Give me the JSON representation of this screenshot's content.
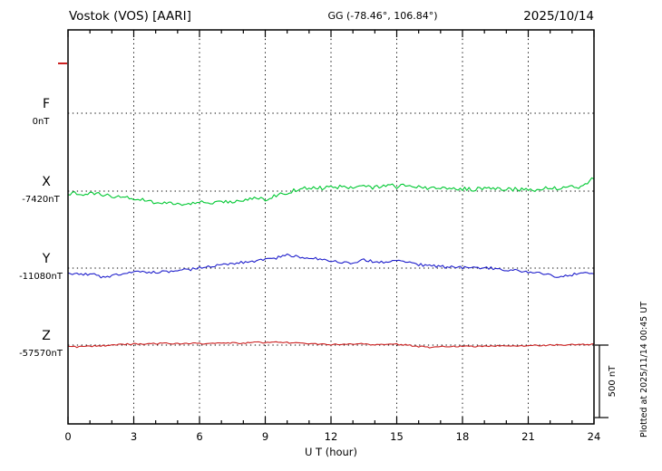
{
  "header": {
    "station": "Vostok (VOS)  [AARI]",
    "coords": "GG (-78.46°, 106.84°)",
    "date": "2025/10/14"
  },
  "xaxis": {
    "label": "U T (hour)",
    "tick_labels": [
      "0",
      "3",
      "6",
      "9",
      "12",
      "15",
      "18",
      "21",
      "24"
    ]
  },
  "scale_bar": {
    "label": "500 nT",
    "nt": 500
  },
  "plotted_at": "Plotted at 2025/11/14 00:45 UT",
  "chart_data": {
    "type": "line",
    "title": "Vostok (VOS) [AARI] magnetogram, 2025/10/14",
    "xlabel": "U T (hour)",
    "x_range_hours": [
      0,
      24
    ],
    "x_step_hours": 0.5,
    "x_ticks": [
      0,
      3,
      6,
      9,
      12,
      15,
      18,
      21,
      24
    ],
    "scale_nt": 500,
    "series": [
      {
        "name": "F",
        "color": "#ffa500",
        "baseline_label": "0nT",
        "baseline_nt": 0,
        "noise_nt": 0,
        "offsets_nt": []
      },
      {
        "name": "X",
        "color": "#00c832",
        "baseline_label": "-7420nT",
        "baseline_nt": -7420,
        "noise_nt": 14,
        "offsets_nt": [
          -15,
          -20,
          -18,
          -25,
          -35,
          -45,
          -55,
          -65,
          -75,
          -85,
          -90,
          -85,
          -72,
          -78,
          -80,
          -70,
          -60,
          -48,
          -55,
          -30,
          -8,
          12,
          25,
          20,
          26,
          32,
          25,
          32,
          26,
          45,
          30,
          40,
          26,
          20,
          16,
          22,
          16,
          12,
          16,
          12,
          16,
          12,
          8,
          12,
          22,
          16,
          35,
          30,
          90
        ]
      },
      {
        "name": "Y",
        "color": "#2020cc",
        "baseline_label": "-11080nT",
        "baseline_nt": -11080,
        "noise_nt": 10,
        "offsets_nt": [
          -30,
          -45,
          -40,
          -60,
          -55,
          -35,
          -20,
          -25,
          -30,
          -25,
          -20,
          -10,
          0,
          15,
          25,
          35,
          40,
          50,
          55,
          70,
          90,
          80,
          70,
          60,
          45,
          40,
          35,
          55,
          45,
          40,
          55,
          45,
          25,
          15,
          10,
          5,
          5,
          0,
          5,
          -5,
          -10,
          -15,
          -25,
          -35,
          -50,
          -60,
          -45,
          -40,
          -35
        ]
      },
      {
        "name": "Z",
        "color": "#cc2020",
        "baseline_label": "-57570nT",
        "baseline_nt": -57570,
        "noise_nt": 5,
        "offsets_nt": [
          -10,
          -12,
          -8,
          -5,
          0,
          5,
          8,
          5,
          10,
          12,
          10,
          12,
          10,
          12,
          10,
          15,
          12,
          20,
          15,
          20,
          18,
          12,
          10,
          8,
          5,
          8,
          5,
          10,
          0,
          8,
          5,
          0,
          -10,
          -15,
          -12,
          -10,
          -8,
          -10,
          -8,
          -6,
          -5,
          -4,
          -3,
          -2,
          0,
          2,
          3,
          4,
          5
        ]
      }
    ]
  }
}
